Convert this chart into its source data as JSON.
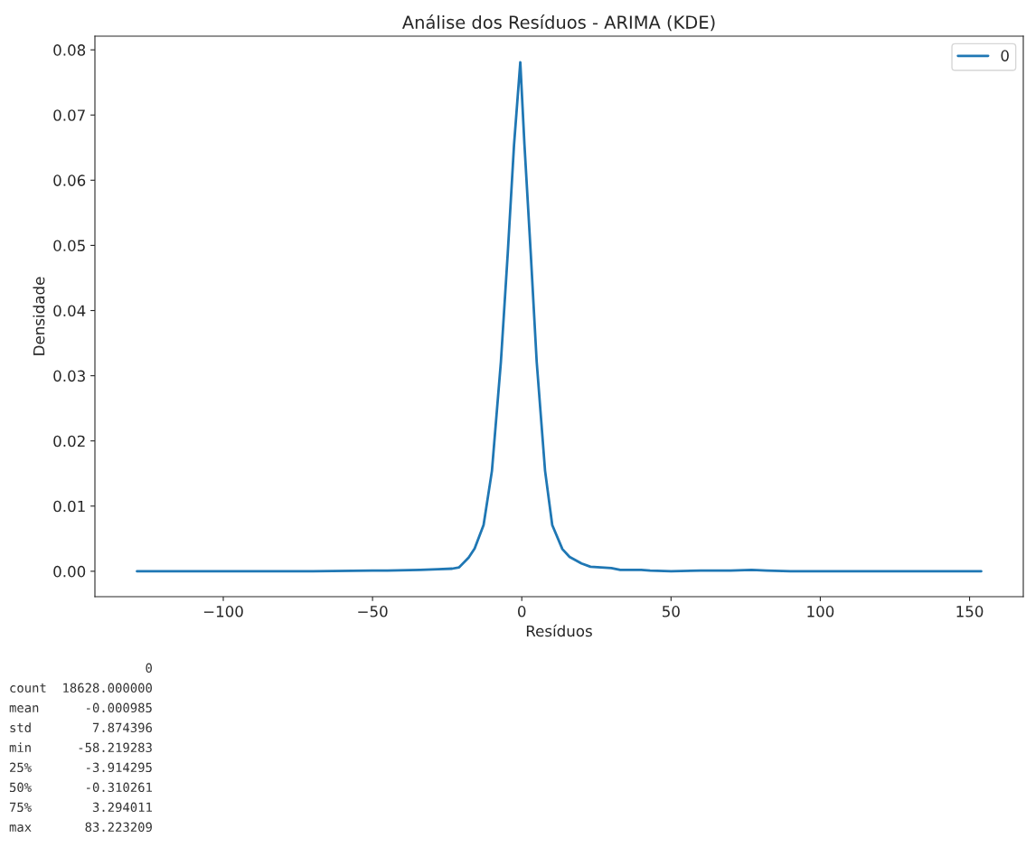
{
  "chart_data": {
    "type": "line",
    "title": "Análise dos Resíduos - ARIMA (KDE)",
    "xlabel": "Resíduos",
    "ylabel": "Densidade",
    "series": [
      {
        "name": "0",
        "color": "#1f77b4",
        "x": [
          -128.9,
          -100,
          -70,
          -50,
          -45,
          -34,
          -28,
          -23.3,
          -21,
          -17.8,
          -15.8,
          -12.8,
          -10.0,
          -7.0,
          -4.7,
          -2.6,
          -0.5,
          0.9,
          3.0,
          5.0,
          7.8,
          10.2,
          13.6,
          16,
          20,
          23,
          30,
          33,
          40,
          43,
          50,
          60,
          70,
          77,
          82,
          90,
          100,
          120,
          153.9
        ],
        "values": [
          0,
          0,
          0,
          0.0001,
          0.0001,
          0.0002,
          0.0003,
          0.0004,
          0.0006,
          0.0021,
          0.0035,
          0.0071,
          0.0154,
          0.0321,
          0.0488,
          0.0654,
          0.0781,
          0.0654,
          0.0488,
          0.0321,
          0.0154,
          0.0071,
          0.0034,
          0.0022,
          0.0012,
          0.0007,
          0.0005,
          0.0002,
          0.0002,
          0.0001,
          0,
          0.0001,
          0.0001,
          0.0002,
          0.0001,
          0,
          0,
          0,
          0
        ]
      }
    ],
    "xlim": [
      -143.0,
      168.0
    ],
    "xticks": [
      {
        "value": -100,
        "label": "−100"
      },
      {
        "value": -50,
        "label": "−50"
      },
      0,
      50,
      100,
      150
    ],
    "ylim": [
      -0.0039,
      0.0821
    ],
    "yticks": [
      {
        "value": 0,
        "label": "0.00"
      },
      {
        "value": 0.01,
        "label": "0.01"
      },
      {
        "value": 0.02,
        "label": "0.02"
      },
      {
        "value": 0.03,
        "label": "0.03"
      },
      {
        "value": 0.04,
        "label": "0.04"
      },
      {
        "value": 0.05,
        "label": "0.05"
      },
      {
        "value": 0.06,
        "label": "0.06"
      },
      {
        "value": 0.07,
        "label": "0.07"
      },
      {
        "value": 0.08,
        "label": "0.08"
      }
    ],
    "legend": "top right",
    "grid": false,
    "marker": "none",
    "line_style": "solid",
    "annotations": [
      "                  0",
      "count  18628.000000",
      "mean      -0.000985",
      "std        7.874396",
      "min      -58.219283",
      "25%       -3.914295",
      "50%       -0.310261",
      "75%        3.294011",
      "max       83.223209"
    ]
  }
}
